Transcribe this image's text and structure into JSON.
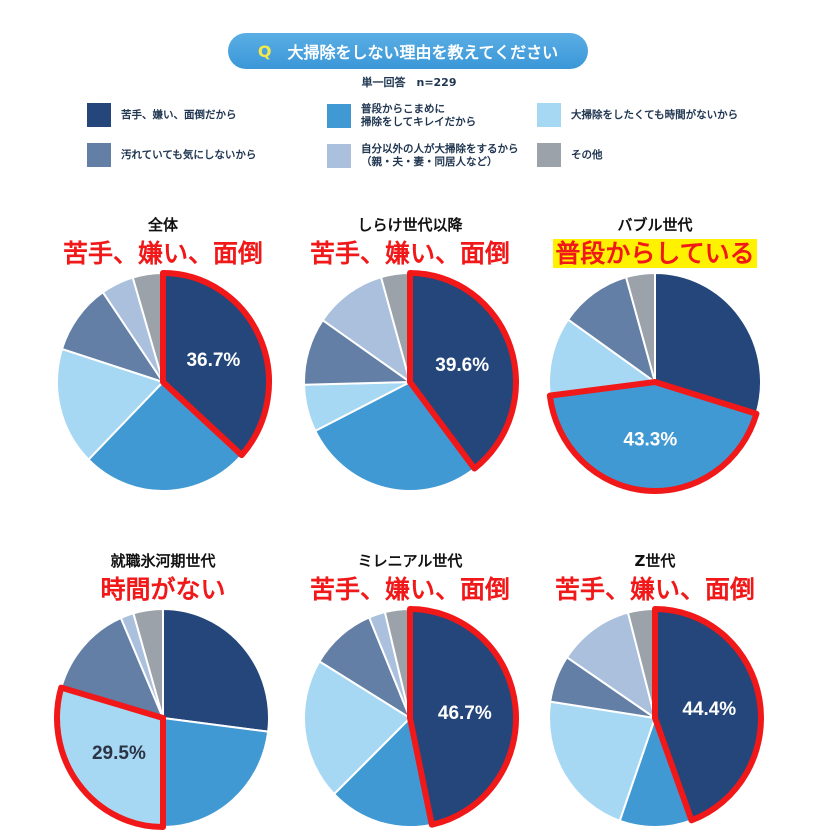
{
  "header": {
    "q_mark": "Q",
    "question": "大掃除をしない理由を教えてください",
    "response_note": "単一回答　n=229"
  },
  "chart_data": {
    "type": "pie",
    "legend": {
      "placement": "top",
      "entries": [
        {
          "label": "苦手、嫌い、面倒だから",
          "color": "#24467a"
        },
        {
          "label": "普段からこまめに\n掃除をしてキレイだから",
          "color": "#4099d3"
        },
        {
          "label": "大掃除をしたくても時間がないから",
          "color": "#a7d8f3"
        },
        {
          "label": "汚れていても気にしないから",
          "color": "#637fa6"
        },
        {
          "label": "自分以外の人が大掃除をするから\n（親・夫・妻・同居人など）",
          "color": "#abc0dd"
        },
        {
          "label": "その他",
          "color": "#9ba2aa"
        }
      ]
    },
    "highlight_color": "#f01818",
    "charts": [
      {
        "title": "全体",
        "callout": "苦手、嫌い、面倒",
        "values": [
          36.7,
          25.7,
          17.5,
          10.5,
          5.0,
          4.6
        ],
        "highlight": 0,
        "label": "36.7%"
      },
      {
        "title": "しらけ世代以降",
        "callout": "苦手、嫌い、面倒",
        "values": [
          39.6,
          28.0,
          7.0,
          10.0,
          11.0,
          4.4
        ],
        "highlight": 0,
        "label": "39.6%"
      },
      {
        "title": "バブル世代",
        "callout": "普段からしている",
        "callout_bg": "#fff200",
        "values": [
          29.7,
          43.3,
          11.7,
          10.9,
          0,
          4.4
        ],
        "highlight": 1,
        "label": "43.3%"
      },
      {
        "title": "就職氷河期世代",
        "callout": "時間がない",
        "values": [
          27.0,
          23.0,
          29.5,
          14.0,
          2.0,
          4.5
        ],
        "highlight": 2,
        "label": "29.5%"
      },
      {
        "title": "ミレニアル世代",
        "callout": "苦手、嫌い、面倒",
        "values": [
          46.7,
          16.0,
          21.0,
          10.0,
          2.5,
          3.8
        ],
        "highlight": 0,
        "label": "46.7%"
      },
      {
        "title": "Z世代",
        "callout": "苦手、嫌い、面倒",
        "values": [
          44.4,
          11.0,
          22.0,
          7.0,
          11.5,
          4.1
        ],
        "highlight": 0,
        "label": "44.4%"
      }
    ]
  }
}
